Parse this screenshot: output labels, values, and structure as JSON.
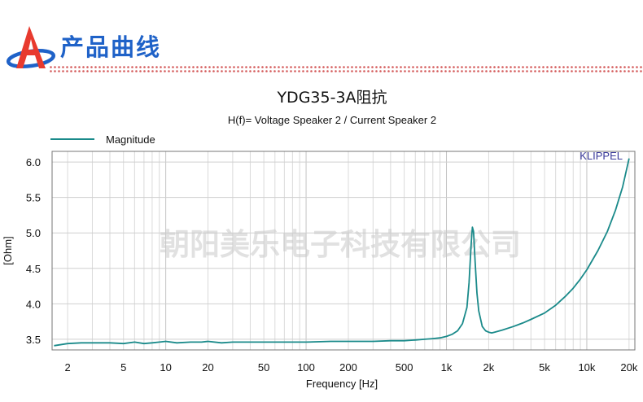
{
  "header": {
    "title": "产品曲线",
    "rule_color": "#d45a5a",
    "logo": {
      "letters": "A",
      "colors": [
        "#e83a2e",
        "#1f62c8"
      ]
    }
  },
  "watermark": "朝阳美乐电子科技有限公司",
  "chart_data": {
    "type": "line",
    "title": "YDG35-3A阻抗",
    "subtitle": "H(f)= Voltage Speaker 2 / Current Speaker 2",
    "xlabel": "Frequency [Hz]",
    "ylabel": "[Ohm]",
    "xscale": "log",
    "xlim": [
      1.55,
      22000
    ],
    "ylim": [
      3.35,
      6.15
    ],
    "x_ticks": [
      {
        "value": 2,
        "label": "2"
      },
      {
        "value": 5,
        "label": "5"
      },
      {
        "value": 10,
        "label": "10"
      },
      {
        "value": 20,
        "label": "20"
      },
      {
        "value": 50,
        "label": "50"
      },
      {
        "value": 100,
        "label": "100"
      },
      {
        "value": 200,
        "label": "200"
      },
      {
        "value": 500,
        "label": "500"
      },
      {
        "value": 1000,
        "label": "1k"
      },
      {
        "value": 2000,
        "label": "2k"
      },
      {
        "value": 5000,
        "label": "5k"
      },
      {
        "value": 10000,
        "label": "10k"
      },
      {
        "value": 20000,
        "label": "20k"
      }
    ],
    "y_ticks": [
      {
        "value": 3.5,
        "label": "3.5"
      },
      {
        "value": 4.0,
        "label": "4.0"
      },
      {
        "value": 4.5,
        "label": "4.5"
      },
      {
        "value": 5.0,
        "label": "5.0"
      },
      {
        "value": 5.5,
        "label": "5.5"
      },
      {
        "value": 6.0,
        "label": "6.0"
      }
    ],
    "grid": true,
    "legend_position": "top-left",
    "watermark_label": "KLIPPEL",
    "series": [
      {
        "name": "Magnitude",
        "color": "#1a8a8a",
        "x": [
          1.6,
          2,
          2.5,
          3,
          4,
          5,
          6,
          7,
          8,
          9,
          10,
          12,
          15,
          18,
          20,
          25,
          30,
          40,
          50,
          70,
          100,
          150,
          200,
          300,
          400,
          500,
          600,
          700,
          800,
          900,
          1000,
          1100,
          1200,
          1300,
          1400,
          1450,
          1500,
          1530,
          1560,
          1600,
          1650,
          1700,
          1800,
          1900,
          2000,
          2100,
          2200,
          2500,
          3000,
          3500,
          4000,
          5000,
          6000,
          7000,
          8000,
          9000,
          10000,
          12000,
          14000,
          16000,
          18000,
          20000
        ],
        "values": [
          3.41,
          3.44,
          3.45,
          3.45,
          3.45,
          3.44,
          3.46,
          3.44,
          3.45,
          3.46,
          3.47,
          3.45,
          3.46,
          3.46,
          3.47,
          3.45,
          3.46,
          3.46,
          3.46,
          3.46,
          3.46,
          3.47,
          3.47,
          3.47,
          3.48,
          3.48,
          3.49,
          3.5,
          3.51,
          3.52,
          3.54,
          3.57,
          3.62,
          3.72,
          3.95,
          4.3,
          4.85,
          5.08,
          5.02,
          4.6,
          4.15,
          3.9,
          3.68,
          3.62,
          3.6,
          3.59,
          3.6,
          3.63,
          3.68,
          3.73,
          3.78,
          3.87,
          3.98,
          4.1,
          4.22,
          4.35,
          4.48,
          4.75,
          5.02,
          5.32,
          5.65,
          6.05
        ]
      }
    ]
  }
}
